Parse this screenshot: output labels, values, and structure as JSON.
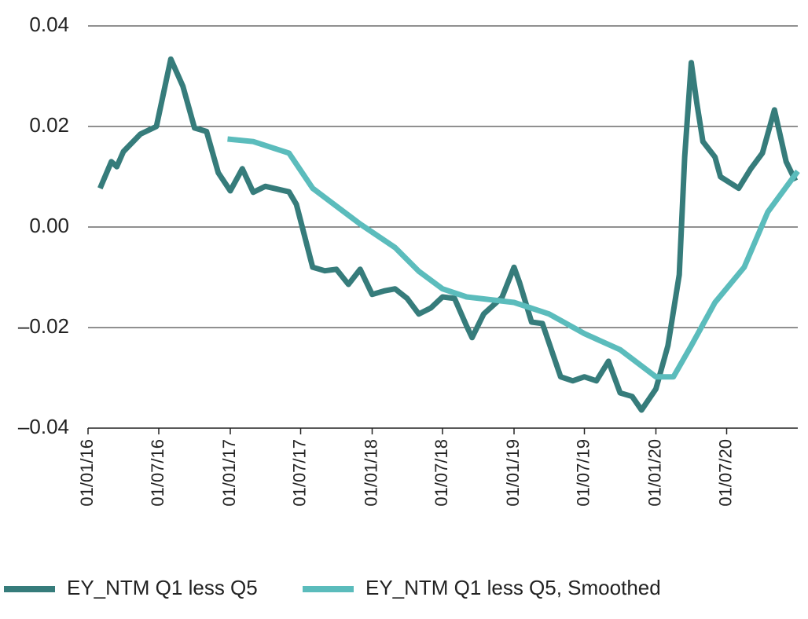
{
  "chart_data": {
    "type": "line",
    "xlim": [
      "01/01/16",
      "31/12/20"
    ],
    "xticks": [
      "01/01/16",
      "01/07/16",
      "01/01/17",
      "01/07/17",
      "01/01/18",
      "01/07/18",
      "01/01/19",
      "01/07/19",
      "01/01/20",
      "01/07/20"
    ],
    "ylim": [
      -0.04,
      0.04
    ],
    "yticks": [
      {
        "value": -0.04,
        "label": "–0.04"
      },
      {
        "value": -0.02,
        "label": "–0.02"
      },
      {
        "value": 0,
        "label": "0.00"
      },
      0.02,
      0.04
    ],
    "grid": true,
    "legend": "bottom",
    "series": [
      {
        "name": "EY_NTM Q1 less Q5",
        "color": "#367c7b",
        "x": [
          "01/02/16",
          "01/03/16",
          "15/03/16",
          "01/04/16",
          "15/05/16",
          "25/06/16",
          "01/08/16",
          "01/09/16",
          "01/10/16",
          "01/11/16",
          "01/12/16",
          "01/01/17",
          "01/02/17",
          "01/03/17",
          "01/04/17",
          "01/06/17",
          "20/06/17",
          "01/08/17",
          "01/09/17",
          "01/10/17",
          "01/11/17",
          "01/12/17",
          "01/01/18",
          "01/02/18",
          "01/03/18",
          "01/04/18",
          "01/05/18",
          "01/06/18",
          "01/07/18",
          "01/08/18",
          "01/09/18",
          "15/09/18",
          "15/10/18",
          "01/12/18",
          "01/01/19",
          "15/01/19",
          "15/02/19",
          "15/03/19",
          "01/05/19",
          "01/06/19",
          "01/07/19",
          "01/08/19",
          "01/09/19",
          "01/10/19",
          "01/11/19",
          "25/11/19",
          "01/01/20",
          "01/02/20",
          "01/03/20",
          "15/03/20",
          "01/04/20",
          "15/04/20",
          "01/05/20",
          "01/06/20",
          "15/06/20",
          "01/08/20",
          "01/09/20",
          "01/10/20",
          "01/11/20",
          "01/12/20",
          "25/12/20"
        ],
        "values": [
          0.0077,
          0.013,
          0.012,
          0.015,
          0.0185,
          0.02,
          0.0334,
          0.028,
          0.0197,
          0.019,
          0.0108,
          0.0072,
          0.0116,
          0.0069,
          0.0081,
          0.007,
          0.0045,
          -0.008,
          -0.0087,
          -0.0084,
          -0.0114,
          -0.0084,
          -0.0134,
          -0.0127,
          -0.0123,
          -0.0142,
          -0.0173,
          -0.0161,
          -0.0139,
          -0.0142,
          -0.0197,
          -0.022,
          -0.0173,
          -0.014,
          -0.008,
          -0.011,
          -0.0189,
          -0.0192,
          -0.0298,
          -0.0306,
          -0.0298,
          -0.0306,
          -0.0267,
          -0.033,
          -0.0337,
          -0.0364,
          -0.0322,
          -0.0236,
          -0.0095,
          0.0139,
          0.0327,
          0.0248,
          0.017,
          0.0139,
          0.01,
          0.0077,
          0.0116,
          0.0147,
          0.0233,
          0.013,
          0.0092
        ]
      },
      {
        "name": "EY_NTM Q1 less Q5, Smoothed",
        "color": "#5bbcbc",
        "x": [
          "25/12/16",
          "01/03/17",
          "01/06/17",
          "01/08/17",
          "01/12/17",
          "01/03/18",
          "01/05/18",
          "01/07/18",
          "01/09/18",
          "01/01/19",
          "01/04/19",
          "01/07/19",
          "01/10/19",
          "01/01/20",
          "15/02/20",
          "01/04/20",
          "01/06/20",
          "15/08/20",
          "15/10/20",
          "31/12/20"
        ],
        "values": [
          0.0175,
          0.017,
          0.0147,
          0.0077,
          0.0006,
          -0.0041,
          -0.0088,
          -0.0123,
          -0.0139,
          -0.015,
          -0.0173,
          -0.0212,
          -0.0244,
          -0.0298,
          -0.0298,
          -0.0236,
          -0.015,
          -0.008,
          0.003,
          0.0111
        ]
      }
    ]
  }
}
